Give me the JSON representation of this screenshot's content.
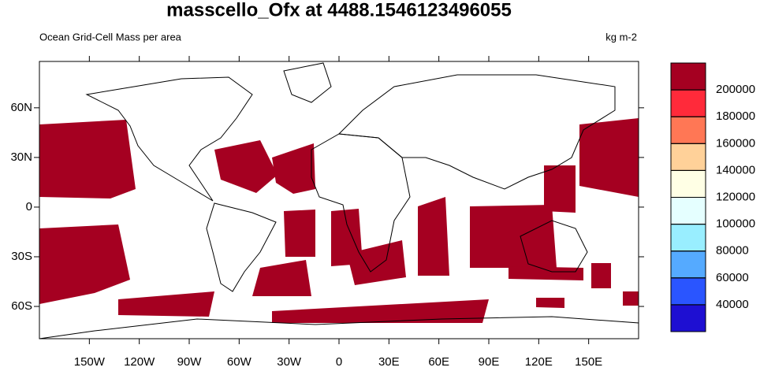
{
  "chart_data": {
    "type": "map",
    "title": "masscello_Ofx at 4488.1546123496055",
    "subtitle": "Ocean Grid-Cell Mass per area",
    "units": "kg m-2",
    "xlim": [
      -180,
      180
    ],
    "ylim": [
      -79.5,
      88
    ],
    "xticks": [
      {
        "value": -150,
        "label": "150W"
      },
      {
        "value": -120,
        "label": "120W"
      },
      {
        "value": -90,
        "label": "90W"
      },
      {
        "value": -60,
        "label": "60W"
      },
      {
        "value": -30,
        "label": "30W"
      },
      0,
      {
        "value": 30,
        "label": "30E"
      },
      {
        "value": 60,
        "label": "60E"
      },
      {
        "value": 90,
        "label": "90E"
      },
      {
        "value": 120,
        "label": "120E"
      },
      {
        "value": 150,
        "label": "150E"
      }
    ],
    "yticks": [
      {
        "value": 60,
        "label": "60N"
      },
      {
        "value": 30,
        "label": "30N"
      },
      0,
      {
        "value": -30,
        "label": "30S"
      },
      {
        "value": -60,
        "label": "60S"
      }
    ],
    "colorbar": {
      "levels": [
        40000,
        60000,
        80000,
        100000,
        120000,
        140000,
        160000,
        180000,
        200000
      ],
      "colors": [
        "#1e0fd2",
        "#2a55ff",
        "#55aaff",
        "#99eeff",
        "#e5ffff",
        "#ffffe5",
        "#ffd199",
        "#ff7755",
        "#ff2a3a",
        "#a50021"
      ]
    }
  }
}
